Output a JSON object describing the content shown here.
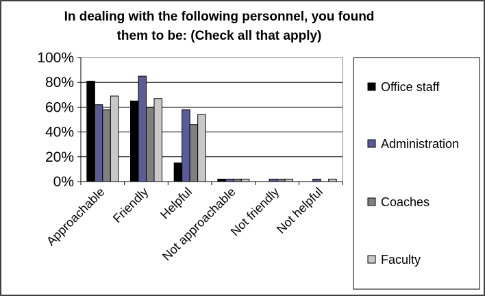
{
  "chart_data": {
    "type": "bar",
    "title": "In dealing with the following personnel, you found them to be:  (Check all that apply)",
    "title_lines": [
      "In dealing with the following personnel, you found",
      "them to be:  (Check all that apply)"
    ],
    "categories": [
      "Approachable",
      "Friendly",
      "Helpful",
      "Not approachable",
      "Not friendly",
      "Not helpful"
    ],
    "series": [
      {
        "name": "Office staff",
        "color": "#000000",
        "values": [
          81,
          65,
          15,
          2,
          0,
          0
        ]
      },
      {
        "name": "Administration",
        "color": "#5b5b9a",
        "values": [
          62,
          85,
          58,
          2,
          2,
          2
        ]
      },
      {
        "name": "Coaches",
        "color": "#808080",
        "values": [
          58,
          60,
          46,
          2,
          2,
          0
        ]
      },
      {
        "name": "Faculty",
        "color": "#c8c8c8",
        "values": [
          69,
          67,
          54,
          2,
          2,
          2
        ]
      }
    ],
    "ylim": [
      0,
      100
    ],
    "yticks": [
      "0%",
      "20%",
      "40%",
      "60%",
      "80%",
      "100%"
    ],
    "xlabel": "",
    "ylabel": "",
    "grid": true,
    "legend_position": "right"
  }
}
